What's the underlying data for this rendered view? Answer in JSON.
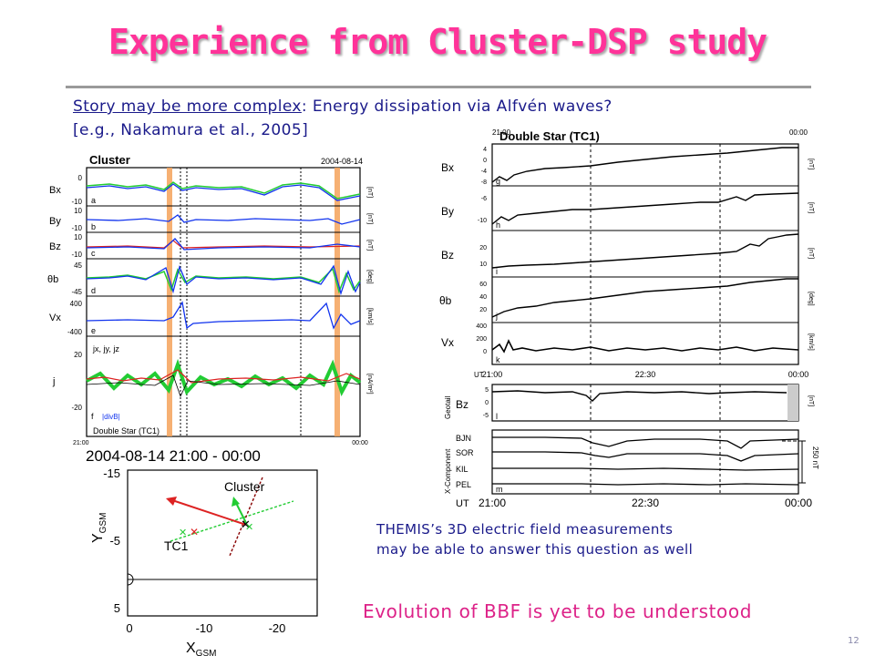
{
  "slide": {
    "title": "Experience from Cluster-DSP study",
    "story_link": "Story may be more complex",
    "story_rest": ": Energy dissipation via Alfvén waves?",
    "story_ref": "[e.g., Nakamura et al., 2005]",
    "themis_line1": "THEMIS’s 3D electric field measurements",
    "themis_line2": "may be able to answer this question as well",
    "bbf_note": "Evolution of BBF is yet to be understood",
    "page_number": "12"
  },
  "cluster_panel": {
    "header_left": "Cluster",
    "header_right": "2004-08-14",
    "footer": "Double Star (TC1)",
    "time_start": "21:00",
    "time_end": "00:00",
    "rows": [
      {
        "label": "Bx",
        "letter": "a",
        "unit": "[nT]",
        "tick_top": "0",
        "tick_bot": "-10"
      },
      {
        "label": "By",
        "letter": "b",
        "unit": "[nT]",
        "tick_top": "10",
        "tick_bot": "-10"
      },
      {
        "label": "Bz",
        "letter": "c",
        "unit": "[nT]",
        "tick_top": "10",
        "tick_bot": "-10"
      },
      {
        "label": "θb",
        "letter": "d",
        "unit": "[deg]",
        "tick_top": "45",
        "tick_bot": "-45"
      },
      {
        "label": "Vx",
        "letter": "e",
        "unit": "[km/s]",
        "tick_top": "400",
        "tick_bot": "-400"
      },
      {
        "label": "j",
        "letter": "f",
        "unit": "[nA/m²]",
        "tick_top": "20",
        "tick_bot": "-20"
      }
    ],
    "j_legend": "jx, jy, jz",
    "divb_label": "|divB|"
  },
  "doublestar_panel": {
    "header_left": "21:00",
    "header_title": "Double Star (TC1)",
    "header_right": "00:00",
    "rows": [
      {
        "label": "Bx",
        "letter": "g",
        "unit": "[nT]",
        "ticks": [
          "4",
          "0",
          "-4",
          "-8"
        ]
      },
      {
        "label": "By",
        "letter": "h",
        "unit": "[nT]",
        "ticks": [
          "-6",
          "-10"
        ]
      },
      {
        "label": "Bz",
        "letter": "i",
        "unit": "[nT]",
        "ticks": [
          "20",
          "10"
        ]
      },
      {
        "label": "θb",
        "letter": "j",
        "unit": "[deg]",
        "ticks": [
          "60",
          "40",
          "20"
        ]
      },
      {
        "label": "Vx",
        "letter": "k",
        "unit": "[km/s]",
        "ticks": [
          "400",
          "200",
          "0"
        ]
      }
    ],
    "axis_ut": "UT",
    "axis_t1": "21:00",
    "axis_t2": "22:30",
    "axis_t3": "00:00"
  },
  "geotail_panel": {
    "label": "Bz",
    "side": "Geotail",
    "letter": "l",
    "unit": "[nT]",
    "ticks": [
      "5",
      "0",
      "-5"
    ]
  },
  "ground_panel": {
    "side": "X-Component",
    "stations": [
      "BJN",
      "SOR",
      "KIL",
      "PEL"
    ],
    "letter": "m",
    "scale": "250 nT",
    "axis_ut": "UT",
    "axis_t1": "21:00",
    "axis_t2": "22:30",
    "axis_t3": "00:00"
  },
  "orbit_panel": {
    "header": "2004-08-14 21:00 - 00:00",
    "ylabel_main": "Y",
    "ylabel_sub": "GSM",
    "xlabel_main": "X",
    "xlabel_sub": "GSM",
    "x_ticks": [
      "0",
      "-10",
      "-20"
    ],
    "y_ticks": [
      "-15",
      "-5",
      "5"
    ],
    "label_cluster": "Cluster",
    "label_tc1": "TC1"
  }
}
